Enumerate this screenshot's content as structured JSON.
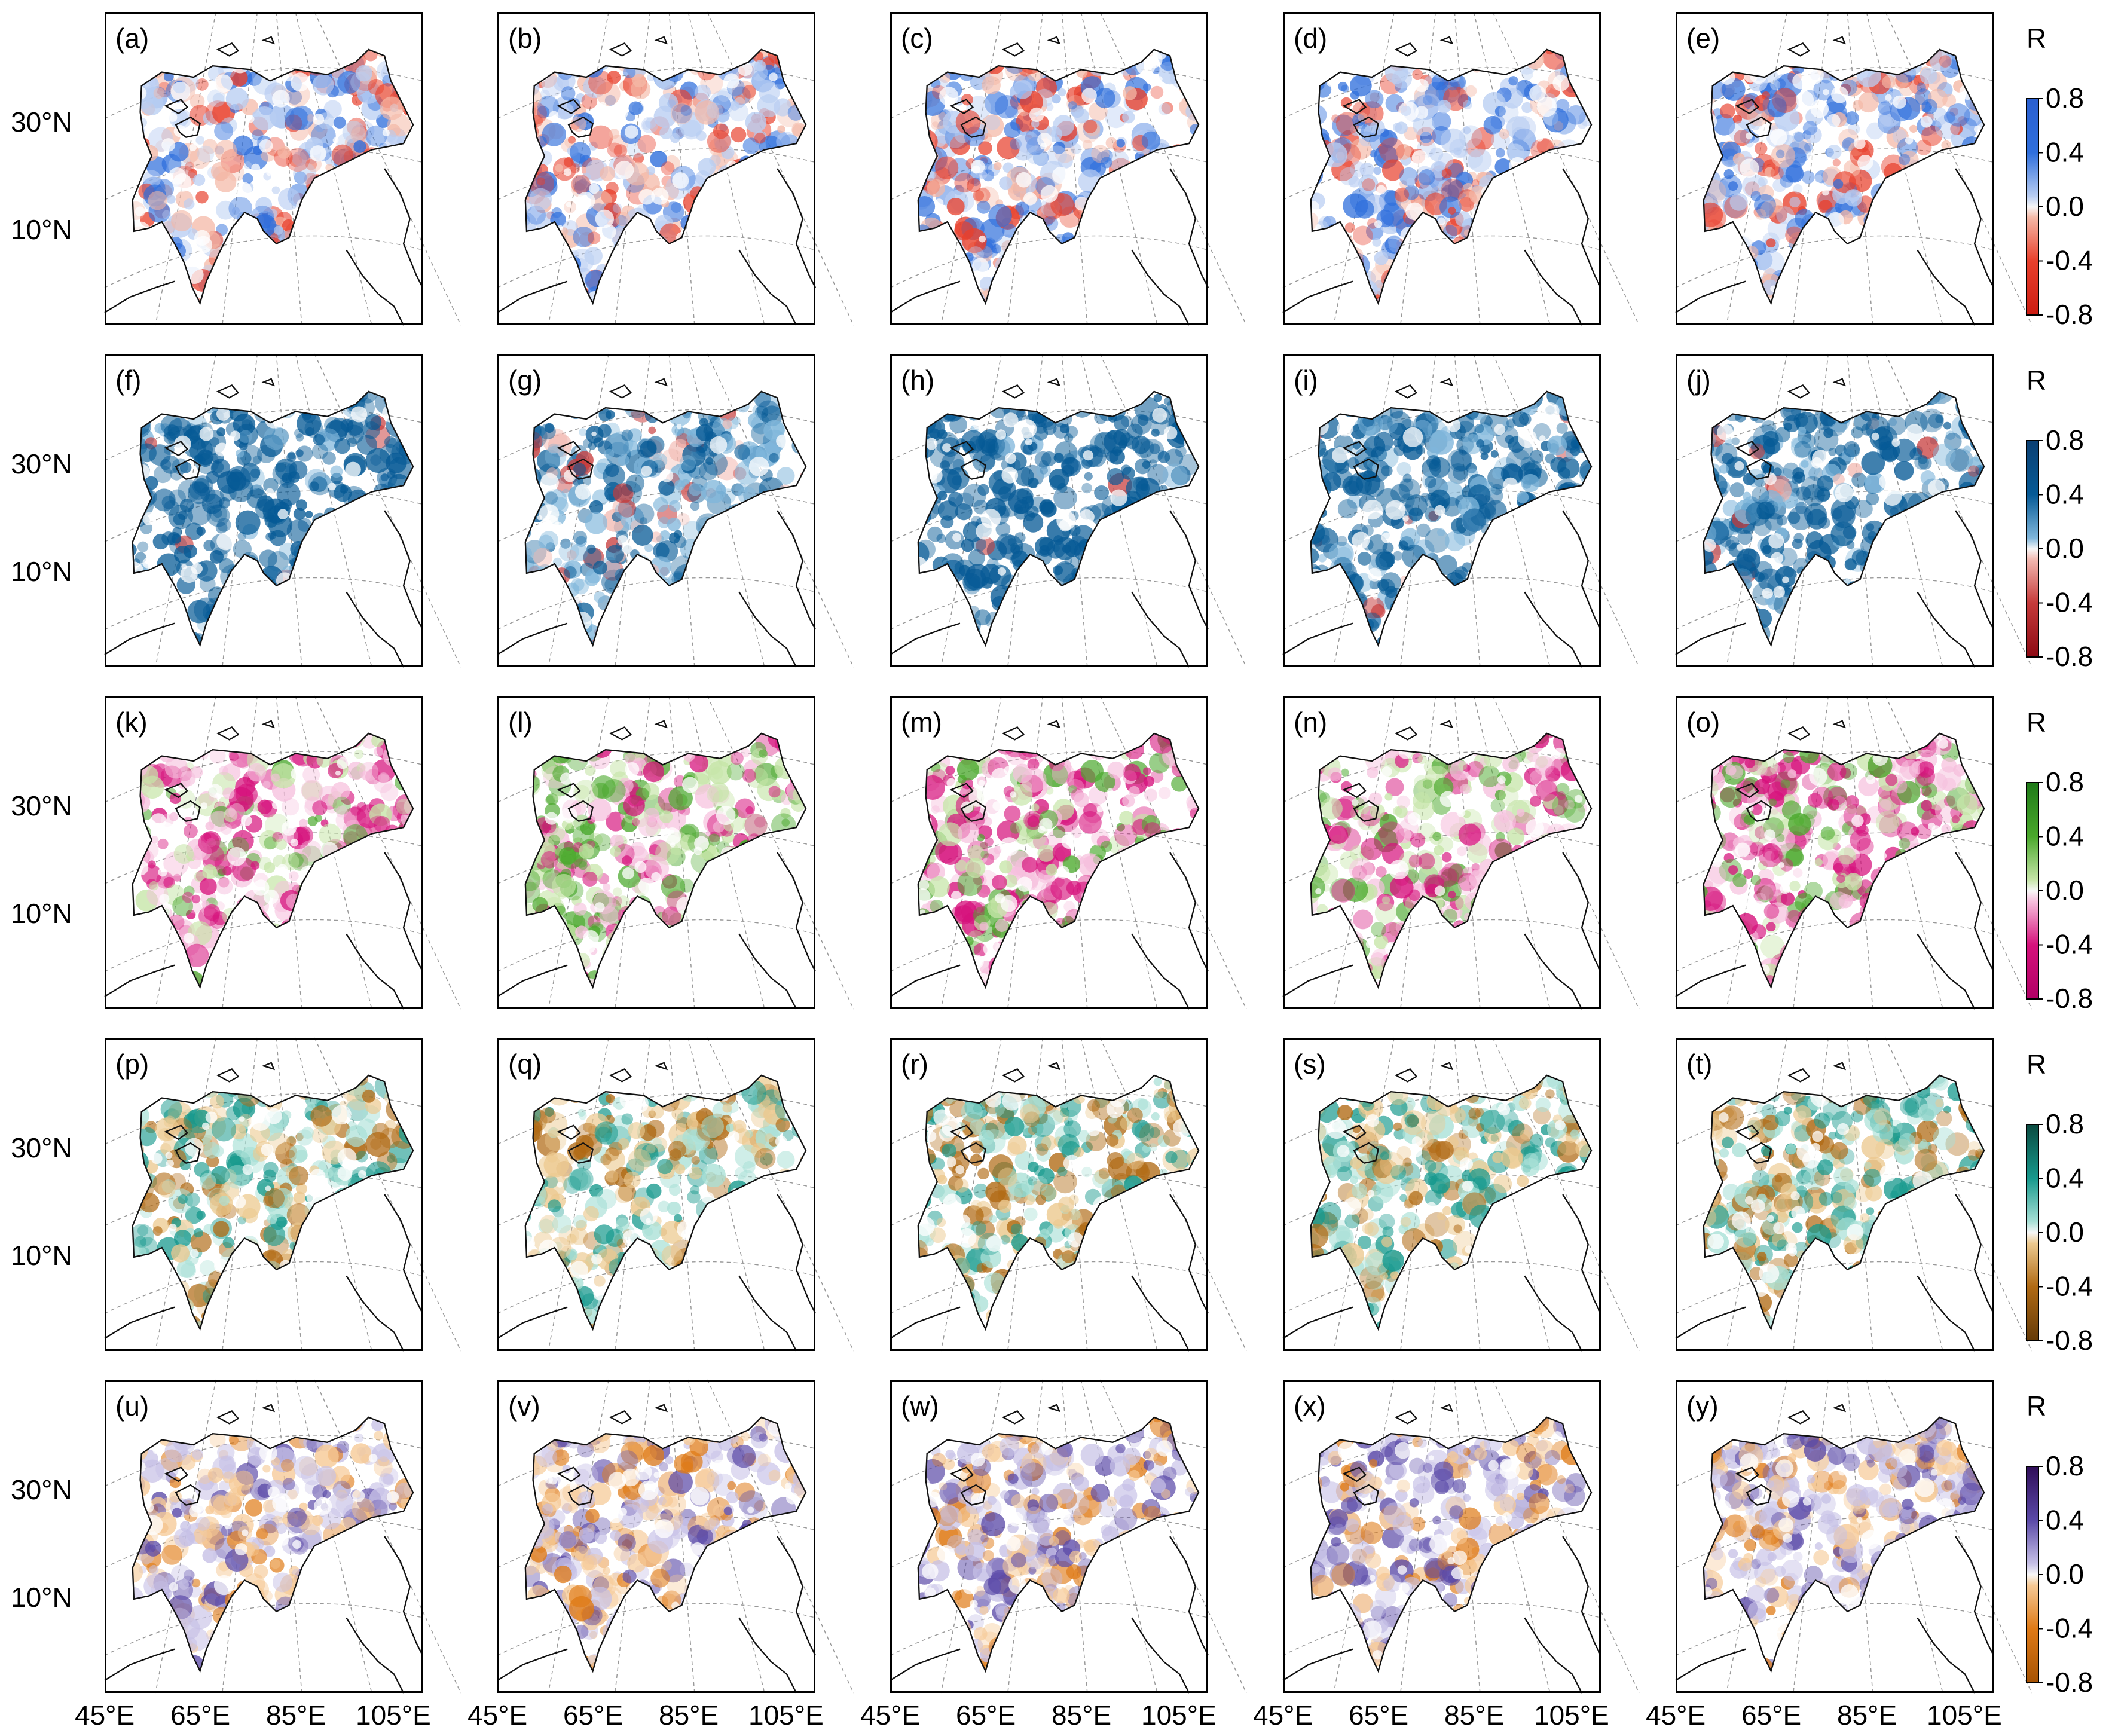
{
  "figure": {
    "panel_labels": [
      [
        "(a)",
        "(b)",
        "(c)",
        "(d)",
        "(e)"
      ],
      [
        "(f)",
        "(g)",
        "(h)",
        "(i)",
        "(j)"
      ],
      [
        "(k)",
        "(l)",
        "(m)",
        "(n)",
        "(o)"
      ],
      [
        "(p)",
        "(q)",
        "(r)",
        "(s)",
        "(t)"
      ],
      [
        "(u)",
        "(v)",
        "(w)",
        "(x)",
        "(y)"
      ]
    ],
    "lat_labels": [
      "30°N",
      "10°N"
    ],
    "lon_labels": [
      "45°E",
      "65°E",
      "85°E",
      "105°E"
    ],
    "colorbar": {
      "label": "R",
      "ticks": [
        "0.8",
        "0.4",
        "0.0",
        "-0.4",
        "-0.8"
      ]
    },
    "rows": [
      {
        "scheme": "RdBu (weak)",
        "pos_color": "#2f6fdc",
        "neg_color": "#e8402c",
        "pos_light": "#b8cdf2",
        "neg_light": "#f4b8a6",
        "cbar_top": "#2a5fd0",
        "cbar_bottom": "#cc1c12",
        "intensity": [
          0.45,
          0.45,
          0.5,
          0.5,
          0.6
        ],
        "pos_bias": [
          0.55,
          0.55,
          0.6,
          0.6,
          0.6
        ]
      },
      {
        "scheme": "RdBu (strong)",
        "pos_color": "#065a96",
        "neg_color": "#c63a3a",
        "pos_light": "#7fb6db",
        "neg_light": "#f2b8b0",
        "cbar_top": "#0b3f72",
        "cbar_bottom": "#8c0a14",
        "intensity": [
          0.9,
          0.55,
          0.95,
          0.8,
          0.8
        ],
        "pos_bias": [
          0.97,
          0.85,
          0.98,
          0.95,
          0.96
        ]
      },
      {
        "scheme": "PiYG",
        "pos_color": "#4aa82c",
        "neg_color": "#d6117c",
        "pos_light": "#c6e5a8",
        "neg_light": "#f6bfdd",
        "cbar_top": "#1e7a18",
        "cbar_bottom": "#b00065",
        "intensity": [
          0.5,
          0.45,
          0.5,
          0.45,
          0.6
        ],
        "pos_bias": [
          0.3,
          0.6,
          0.3,
          0.45,
          0.35
        ]
      },
      {
        "scheme": "BrBG",
        "pos_color": "#17998d",
        "neg_color": "#b06a14",
        "pos_light": "#a8e0d6",
        "neg_light": "#ecc98f",
        "cbar_top": "#0a4a40",
        "cbar_bottom": "#643a08",
        "intensity": [
          0.5,
          0.5,
          0.5,
          0.5,
          0.6
        ],
        "pos_bias": [
          0.5,
          0.45,
          0.5,
          0.55,
          0.55
        ]
      },
      {
        "scheme": "PuOr",
        "pos_color": "#5b4aa8",
        "neg_color": "#df7a16",
        "pos_light": "#c6c0e6",
        "neg_light": "#f6c995",
        "cbar_top": "#2f0d58",
        "cbar_bottom": "#a65304",
        "intensity": [
          0.35,
          0.35,
          0.35,
          0.45,
          0.35
        ],
        "pos_bias": [
          0.55,
          0.5,
          0.55,
          0.65,
          0.55
        ]
      }
    ]
  }
}
